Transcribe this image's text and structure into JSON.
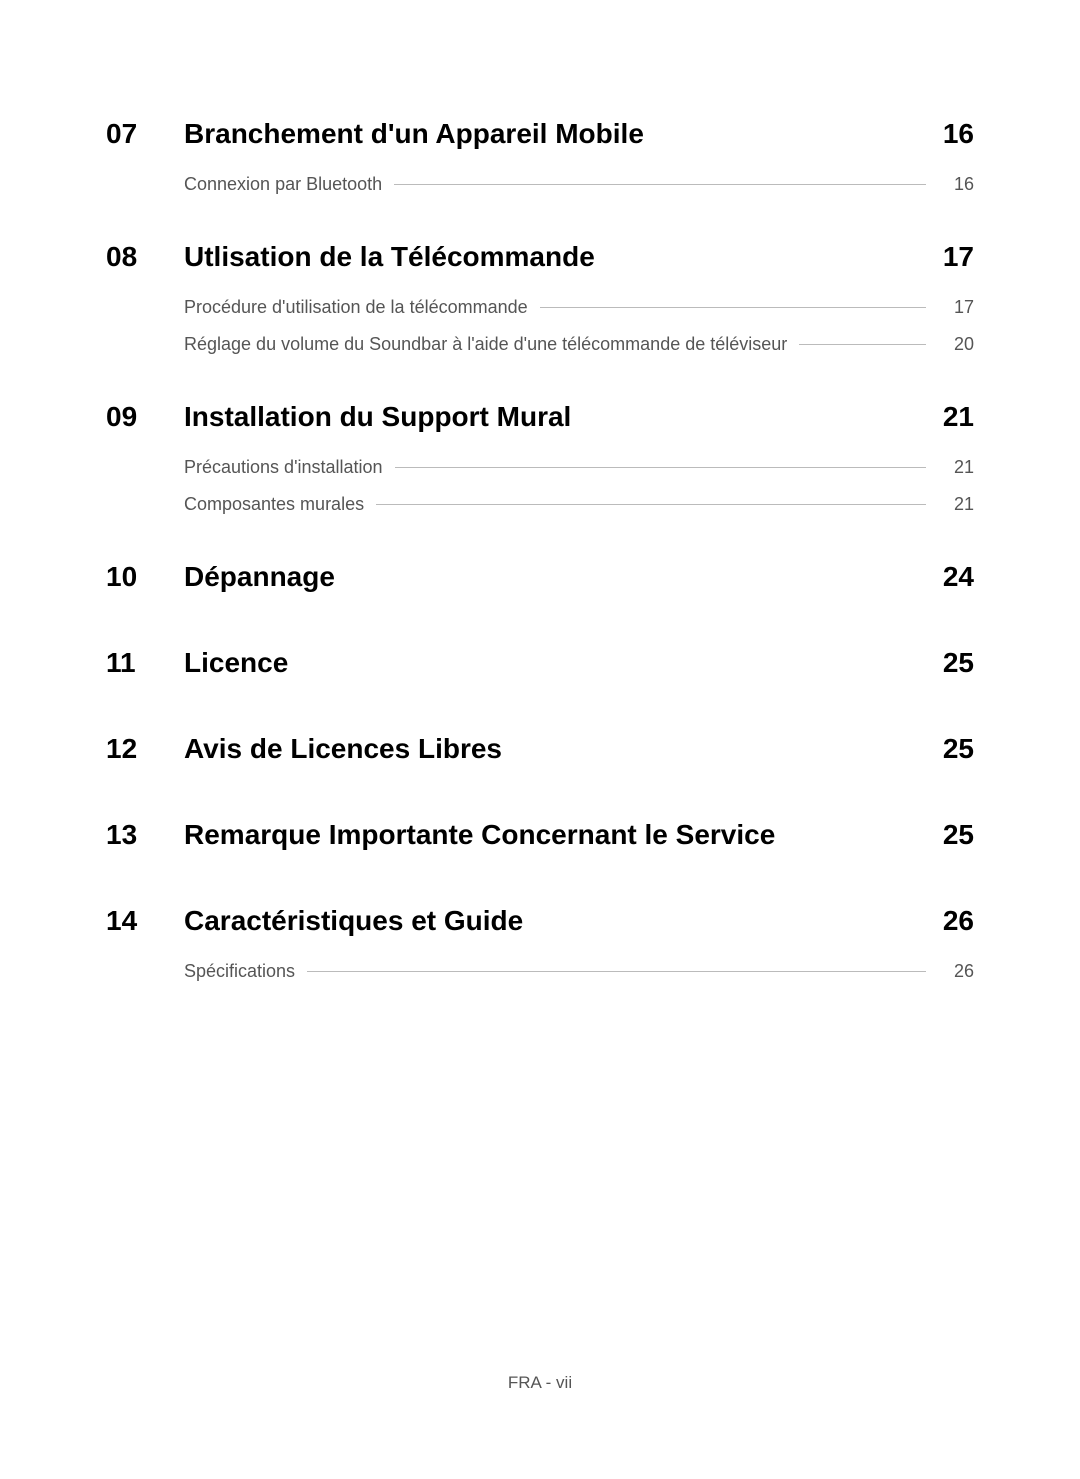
{
  "sections": [
    {
      "number": "07",
      "title": "Branchement d'un Appareil Mobile",
      "page": "16",
      "subitems": [
        {
          "title": "Connexion par Bluetooth",
          "page": "16"
        }
      ]
    },
    {
      "number": "08",
      "title": "Utlisation de la Télécommande",
      "page": "17",
      "subitems": [
        {
          "title": "Procédure d'utilisation de la télécommande",
          "page": "17"
        },
        {
          "title": "Réglage du volume du Soundbar à l'aide d'une télécommande de téléviseur",
          "page": "20"
        }
      ]
    },
    {
      "number": "09",
      "title": "Installation du Support Mural",
      "page": "21",
      "subitems": [
        {
          "title": "Précautions d'installation",
          "page": "21"
        },
        {
          "title": "Composantes murales",
          "page": "21"
        }
      ]
    },
    {
      "number": "10",
      "title": "Dépannage",
      "page": "24",
      "subitems": []
    },
    {
      "number": "11",
      "title": "Licence",
      "page": "25",
      "subitems": []
    },
    {
      "number": "12",
      "title": "Avis de Licences Libres",
      "page": "25",
      "subitems": []
    },
    {
      "number": "13",
      "title": "Remarque Importante Concernant le Service",
      "page": "25",
      "subitems": []
    },
    {
      "number": "14",
      "title": "Caractéristiques et Guide",
      "page": "26",
      "subitems": [
        {
          "title": "Spécifications",
          "page": "26"
        }
      ]
    }
  ],
  "footer": "FRA - vii",
  "colors": {
    "background": "#ffffff",
    "heading_text": "#000000",
    "subitem_text": "#555555",
    "dash_line": "#bbbbbb"
  },
  "typography": {
    "heading_fontsize": 28,
    "heading_weight": 700,
    "subitem_fontsize": 18,
    "subitem_weight": 400,
    "footer_fontsize": 17
  }
}
